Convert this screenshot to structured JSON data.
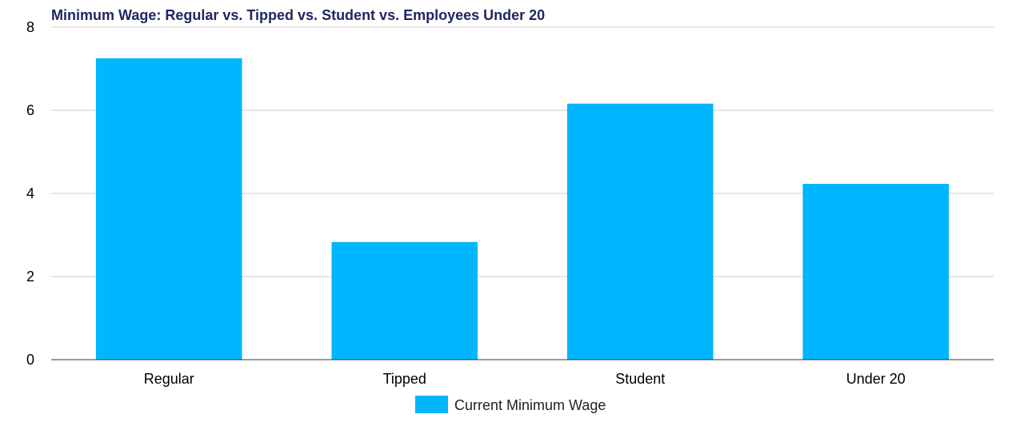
{
  "chart_data": {
    "type": "bar",
    "title": "Minimum Wage: Regular vs. Tipped vs. Student vs. Employees Under 20",
    "categories": [
      "Regular",
      "Tipped",
      "Student",
      "Under 20"
    ],
    "series": [
      {
        "name": "Current Minimum Wage",
        "values": [
          7.25,
          2.83,
          6.16,
          4.23
        ],
        "color": "#00b6ff"
      }
    ],
    "xlabel": "",
    "ylabel": "",
    "ylim": [
      0,
      8
    ],
    "yticks": [
      "0",
      "2",
      "4",
      "6",
      "8"
    ],
    "grid": true,
    "legend_position": "bottom"
  },
  "colors": {
    "title": "#1f2761",
    "grid": "#cccccc",
    "axis": "#333333"
  }
}
